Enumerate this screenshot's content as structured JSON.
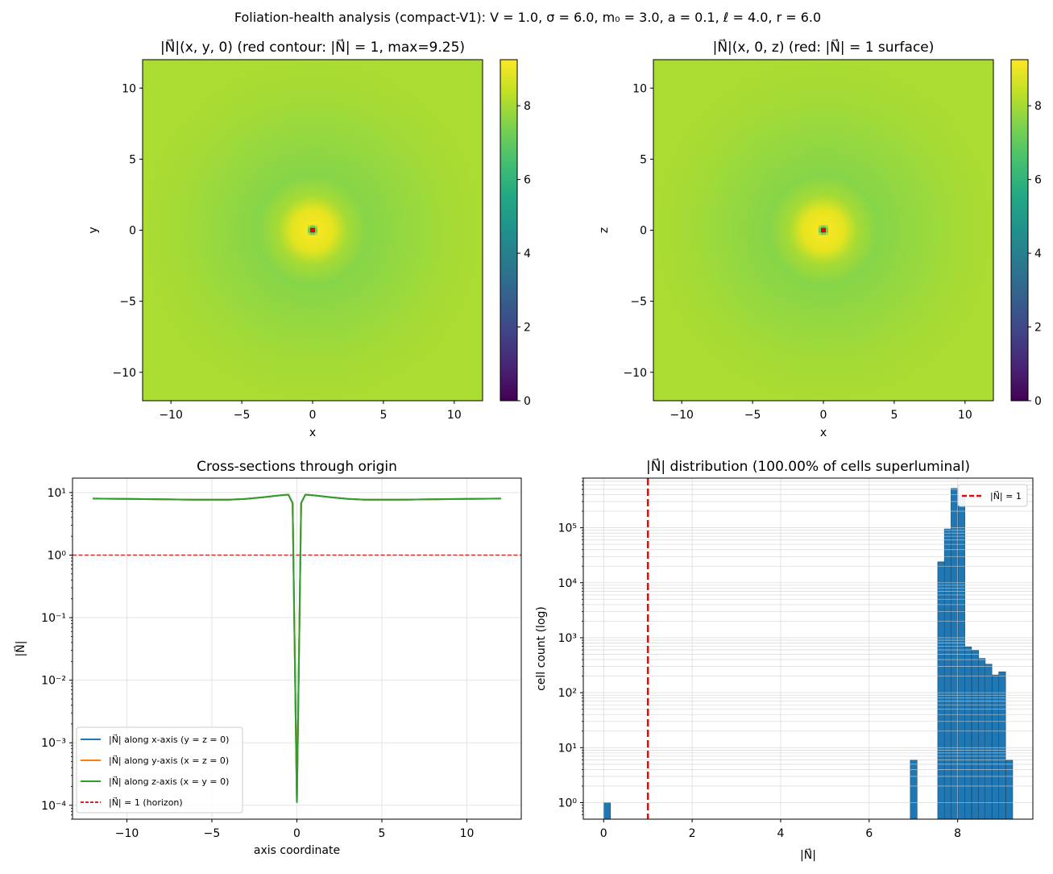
{
  "suptitle": "Foliation-health analysis (compact-V1): V = 1.0, σ = 6.0, m₀ = 3.0, a = 0.1, ℓ = 4.0, r = 6.0",
  "colors": {
    "blue": "#1f77b4",
    "orange": "#ff7f0e",
    "green": "#2ca02c",
    "red": "#d62728",
    "hist_red": "#ff0000"
  },
  "chart_data": [
    {
      "type": "heatmap",
      "title": "|N⃗|(x, y, 0)  (red contour: |N⃗| = 1,  max=9.25)",
      "xlabel": "x",
      "ylabel": "y",
      "xlim": [
        -12,
        12
      ],
      "ylim": [
        -12,
        12
      ],
      "xticks": [
        "−10",
        "−5",
        "0",
        "5",
        "10"
      ],
      "yticks": [
        "10",
        "5",
        "0",
        "−5",
        "−10"
      ],
      "colorbar": {
        "range": [
          0,
          9.25
        ],
        "ticks": [
          "0",
          "2",
          "4",
          "6",
          "8"
        ],
        "cmap": "viridis"
      },
      "max": 9.25,
      "contour_level": 1
    },
    {
      "type": "heatmap",
      "title": "|N⃗|(x, 0, z) (red: |N⃗| = 1 surface)",
      "xlabel": "x",
      "ylabel": "z",
      "xlim": [
        -12,
        12
      ],
      "ylim": [
        -12,
        12
      ],
      "xticks": [
        "−10",
        "−5",
        "0",
        "5",
        "10"
      ],
      "yticks": [
        "10",
        "5",
        "0",
        "−5",
        "−10"
      ],
      "colorbar": {
        "range": [
          0,
          9.25
        ],
        "ticks": [
          "0",
          "2",
          "4",
          "6",
          "8"
        ],
        "cmap": "viridis"
      },
      "max": 9.25,
      "contour_level": 1
    },
    {
      "type": "line",
      "title": "Cross-sections through origin",
      "xlabel": "axis coordinate",
      "ylabel": "|N⃗|",
      "yscale": "log",
      "xlim": [
        -13.2,
        13.2
      ],
      "ylim": [
        6e-05,
        17
      ],
      "xticks": [
        "−10",
        "−5",
        "0",
        "5",
        "10"
      ],
      "yticks": [
        "10¹",
        "10⁰",
        "10⁻¹",
        "10⁻²",
        "10⁻³",
        "10⁻⁴"
      ],
      "grid": true,
      "x": [
        -12,
        -10,
        -8,
        -6,
        -4,
        -3,
        -2,
        -1,
        -0.5,
        -0.25,
        0,
        0.25,
        0.5,
        1,
        2,
        3,
        4,
        6,
        8,
        10,
        12
      ],
      "series": [
        {
          "name": "|N⃗| along x-axis (y = z = 0)",
          "values": [
            8.0,
            7.9,
            7.8,
            7.7,
            7.7,
            7.9,
            8.4,
            9.0,
            9.25,
            6.8,
            0.00011,
            6.8,
            9.25,
            9.0,
            8.4,
            7.9,
            7.7,
            7.7,
            7.8,
            7.9,
            8.0
          ]
        },
        {
          "name": "|N⃗| along y-axis (x = z = 0)",
          "values": [
            8.0,
            7.9,
            7.8,
            7.7,
            7.7,
            7.9,
            8.4,
            9.0,
            9.25,
            6.8,
            0.00011,
            6.8,
            9.25,
            9.0,
            8.4,
            7.9,
            7.7,
            7.7,
            7.8,
            7.9,
            8.0
          ]
        },
        {
          "name": "|N⃗| along z-axis (x = y = 0)",
          "values": [
            8.0,
            7.9,
            7.8,
            7.7,
            7.7,
            7.9,
            8.4,
            9.0,
            9.25,
            6.8,
            0.00011,
            6.8,
            9.25,
            9.0,
            8.4,
            7.9,
            7.7,
            7.7,
            7.8,
            7.9,
            8.0
          ]
        }
      ],
      "hline": {
        "y": 1,
        "name": "|N⃗| = 1 (horizon)"
      },
      "legend_position": "lower-left"
    },
    {
      "type": "bar",
      "title": "|N⃗| distribution (100.00% of cells superluminal)",
      "xlabel": "|N⃗|",
      "ylabel": "cell count (log)",
      "yscale": "log",
      "xlim": [
        -0.46,
        9.7
      ],
      "ylim": [
        0.5,
        800000
      ],
      "xticks": [
        "0",
        "2",
        "4",
        "6",
        "8"
      ],
      "yticks": [
        "10⁰",
        "10¹",
        "10²",
        "10³",
        "10⁴",
        "10⁵"
      ],
      "grid": true,
      "bin_width": 0.154,
      "bins": [
        {
          "left": 0.0,
          "count": 1
        },
        {
          "left": 6.93,
          "count": 6
        },
        {
          "left": 7.55,
          "count": 24000
        },
        {
          "left": 7.7,
          "count": 95000
        },
        {
          "left": 7.85,
          "count": 520000
        },
        {
          "left": 8.01,
          "count": 390000
        },
        {
          "left": 8.16,
          "count": 680
        },
        {
          "left": 8.32,
          "count": 590
        },
        {
          "left": 8.47,
          "count": 420
        },
        {
          "left": 8.62,
          "count": 330
        },
        {
          "left": 8.78,
          "count": 210
        },
        {
          "left": 8.93,
          "count": 240
        },
        {
          "left": 9.09,
          "count": 6
        }
      ],
      "vline": {
        "x": 1,
        "name": "|N⃗| = 1"
      },
      "legend_position": "top-right"
    }
  ]
}
